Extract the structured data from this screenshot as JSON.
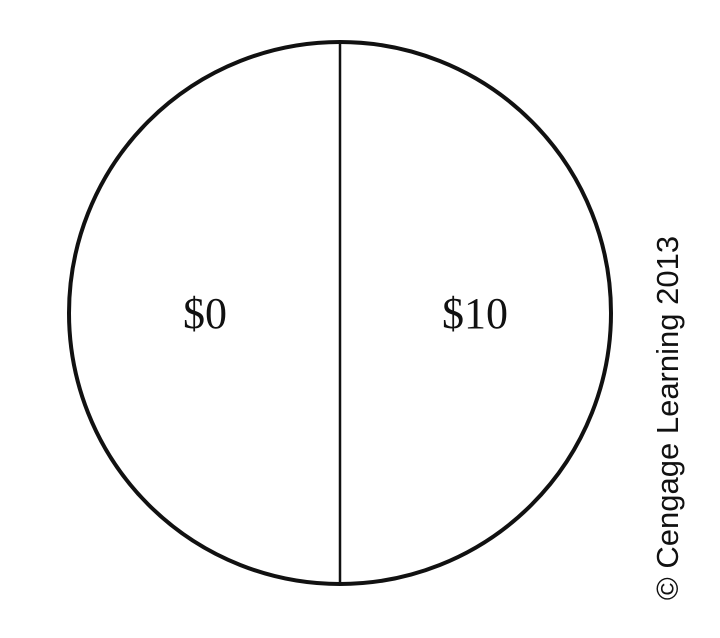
{
  "diagram": {
    "sections": [
      {
        "label": "$0"
      },
      {
        "label": "$10"
      }
    ],
    "copyright": "© Cengage Learning 2013"
  },
  "colors": {
    "stroke": "#111111",
    "background": "#ffffff",
    "text": "#111111"
  }
}
